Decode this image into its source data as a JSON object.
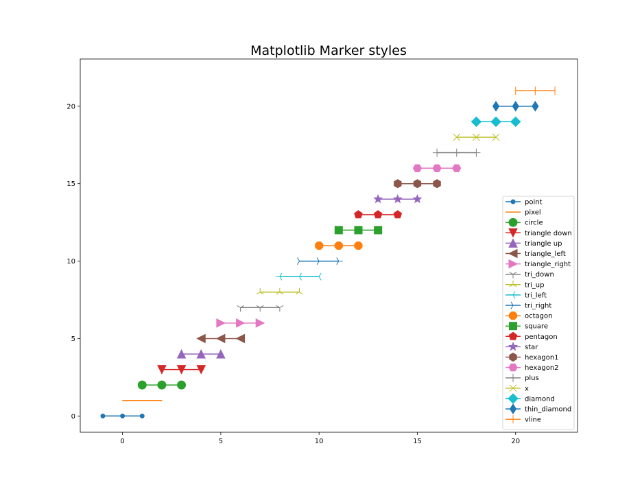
{
  "chart_data": {
    "type": "line",
    "title": "Matplotlib Marker styles",
    "xlabel": "",
    "ylabel": "",
    "xlim": [
      -2.15,
      23.15
    ],
    "ylim": [
      -1.05,
      23.05
    ],
    "xticks": [
      0,
      5,
      10,
      15,
      20
    ],
    "yticks": [
      0,
      5,
      10,
      15,
      20
    ],
    "grid": false,
    "legend_position": "lower-right",
    "series": [
      {
        "name": "point",
        "marker": "point",
        "color": "#1f77b4",
        "x": [
          -1,
          0,
          1
        ],
        "y": [
          0,
          0,
          0
        ]
      },
      {
        "name": "pixel",
        "marker": "pixel",
        "color": "#ff7f0e",
        "x": [
          0,
          1,
          2
        ],
        "y": [
          1,
          1,
          1
        ]
      },
      {
        "name": "circle",
        "marker": "circle",
        "color": "#2ca02c",
        "x": [
          1,
          2,
          3
        ],
        "y": [
          2,
          2,
          2
        ]
      },
      {
        "name": "triangle down",
        "marker": "triangle_down",
        "color": "#d62728",
        "x": [
          2,
          3,
          4
        ],
        "y": [
          3,
          3,
          3
        ]
      },
      {
        "name": "triangle up",
        "marker": "triangle_up",
        "color": "#9467bd",
        "x": [
          3,
          4,
          5
        ],
        "y": [
          4,
          4,
          4
        ]
      },
      {
        "name": "triangle_left",
        "marker": "triangle_left",
        "color": "#8c564b",
        "x": [
          4,
          5,
          6
        ],
        "y": [
          5,
          5,
          5
        ]
      },
      {
        "name": "triangle_right",
        "marker": "triangle_right",
        "color": "#e377c2",
        "x": [
          5,
          6,
          7
        ],
        "y": [
          6,
          6,
          6
        ]
      },
      {
        "name": "tri_down",
        "marker": "tri_down",
        "color": "#7f7f7f",
        "x": [
          6,
          7,
          8
        ],
        "y": [
          7,
          7,
          7
        ]
      },
      {
        "name": "tri_up",
        "marker": "tri_up",
        "color": "#bcbd22",
        "x": [
          7,
          8,
          9
        ],
        "y": [
          8,
          8,
          8
        ]
      },
      {
        "name": "tri_left",
        "marker": "tri_left",
        "color": "#17becf",
        "x": [
          8,
          9,
          10
        ],
        "y": [
          9,
          9,
          9
        ]
      },
      {
        "name": "tri_right",
        "marker": "tri_right",
        "color": "#1f77b4",
        "x": [
          9,
          10,
          11
        ],
        "y": [
          10,
          10,
          10
        ]
      },
      {
        "name": "octagon",
        "marker": "octagon",
        "color": "#ff7f0e",
        "x": [
          10,
          11,
          12
        ],
        "y": [
          11,
          11,
          11
        ]
      },
      {
        "name": "square",
        "marker": "square",
        "color": "#2ca02c",
        "x": [
          11,
          12,
          13
        ],
        "y": [
          12,
          12,
          12
        ]
      },
      {
        "name": "pentagon",
        "marker": "pentagon",
        "color": "#d62728",
        "x": [
          12,
          13,
          14
        ],
        "y": [
          13,
          13,
          13
        ]
      },
      {
        "name": "star",
        "marker": "star",
        "color": "#9467bd",
        "x": [
          13,
          14,
          15
        ],
        "y": [
          14,
          14,
          14
        ]
      },
      {
        "name": "hexagon1",
        "marker": "hexagon1",
        "color": "#8c564b",
        "x": [
          14,
          15,
          16
        ],
        "y": [
          15,
          15,
          15
        ]
      },
      {
        "name": "hexagon2",
        "marker": "hexagon2",
        "color": "#e377c2",
        "x": [
          15,
          16,
          17
        ],
        "y": [
          16,
          16,
          16
        ]
      },
      {
        "name": "plus",
        "marker": "plus",
        "color": "#7f7f7f",
        "x": [
          16,
          17,
          18
        ],
        "y": [
          17,
          17,
          17
        ]
      },
      {
        "name": "x",
        "marker": "x",
        "color": "#bcbd22",
        "x": [
          17,
          18,
          19
        ],
        "y": [
          18,
          18,
          18
        ]
      },
      {
        "name": "diamond",
        "marker": "diamond",
        "color": "#17becf",
        "x": [
          18,
          19,
          20
        ],
        "y": [
          19,
          19,
          19
        ]
      },
      {
        "name": "thin_diamond",
        "marker": "thin_diamond",
        "color": "#1f77b4",
        "x": [
          19,
          20,
          21
        ],
        "y": [
          20,
          20,
          20
        ]
      },
      {
        "name": "vline",
        "marker": "vline",
        "color": "#ff7f0e",
        "x": [
          20,
          21,
          22
        ],
        "y": [
          21,
          21,
          21
        ]
      }
    ]
  }
}
